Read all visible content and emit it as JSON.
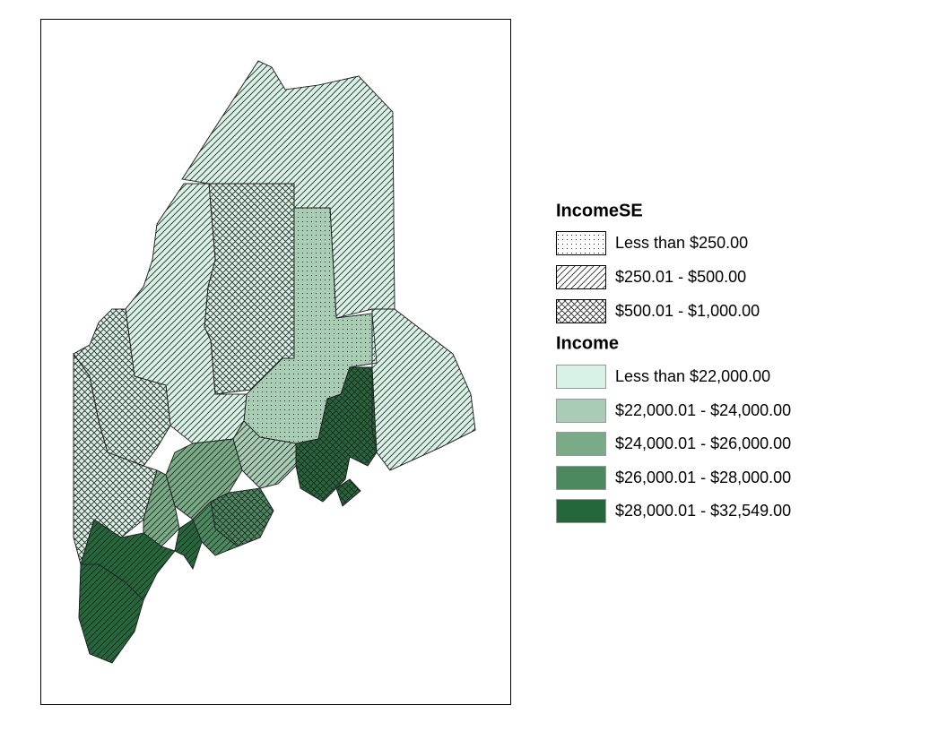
{
  "legend": {
    "income_se": {
      "title": "IncomeSE",
      "items": [
        "Less than $250.00",
        "$250.01 - $500.00",
        "$500.01 - $1,000.00"
      ]
    },
    "income": {
      "title": "Income",
      "items": [
        "Less than $22,000.00",
        "$22,000.01 - $24,000.00",
        "$24,000.01 - $26,000.00",
        "$26,000.01 - $28,000.00",
        "$28,000.01 - $32,549.00"
      ]
    }
  }
}
